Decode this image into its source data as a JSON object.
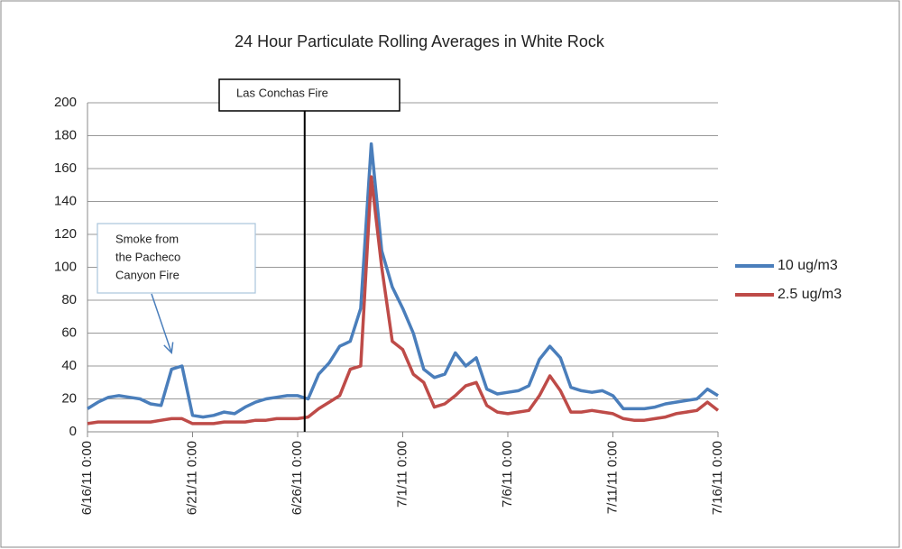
{
  "chart_data": {
    "type": "line",
    "title": "24 Hour Particulate Rolling Averages in White Rock",
    "x": [
      "6/16/11 0:00",
      "6/16/11 12:00",
      "6/17/11 0:00",
      "6/17/11 12:00",
      "6/18/11 0:00",
      "6/18/11 12:00",
      "6/19/11 0:00",
      "6/19/11 12:00",
      "6/20/11 0:00",
      "6/20/11 12:00",
      "6/21/11 0:00",
      "6/21/11 12:00",
      "6/22/11 0:00",
      "6/22/11 12:00",
      "6/23/11 0:00",
      "6/23/11 12:00",
      "6/24/11 0:00",
      "6/24/11 12:00",
      "6/25/11 0:00",
      "6/25/11 12:00",
      "6/26/11 0:00",
      "6/26/11 12:00",
      "6/27/11 0:00",
      "6/27/11 12:00",
      "6/28/11 0:00",
      "6/28/11 12:00",
      "6/29/11 0:00",
      "6/29/11 12:00",
      "6/30/11 0:00",
      "6/30/11 12:00",
      "7/1/11 0:00",
      "7/1/11 12:00",
      "7/2/11 0:00",
      "7/2/11 12:00",
      "7/3/11 0:00",
      "7/3/11 12:00",
      "7/4/11 0:00",
      "7/4/11 12:00",
      "7/5/11 0:00",
      "7/5/11 12:00",
      "7/6/11 0:00",
      "7/6/11 12:00",
      "7/7/11 0:00",
      "7/7/11 12:00",
      "7/8/11 0:00",
      "7/8/11 12:00",
      "7/9/11 0:00",
      "7/9/11 12:00",
      "7/10/11 0:00",
      "7/10/11 12:00",
      "7/11/11 0:00",
      "7/11/11 12:00",
      "7/12/11 0:00",
      "7/12/11 12:00",
      "7/13/11 0:00",
      "7/13/11 12:00",
      "7/14/11 0:00",
      "7/14/11 12:00",
      "7/15/11 0:00",
      "7/15/11 12:00",
      "7/16/11 0:00"
    ],
    "series": [
      {
        "name": "10 ug/m3",
        "color": "#4a7ebb",
        "values": [
          14,
          18,
          21,
          22,
          21,
          20,
          17,
          16,
          38,
          40,
          10,
          9,
          10,
          12,
          11,
          15,
          18,
          20,
          21,
          22,
          22,
          20,
          35,
          42,
          52,
          55,
          75,
          175,
          110,
          88,
          75,
          60,
          38,
          33,
          35,
          48,
          40,
          45,
          26,
          23,
          24,
          25,
          28,
          44,
          52,
          45,
          27,
          25,
          24,
          25,
          22,
          14,
          14,
          14,
          15,
          17,
          18,
          19,
          20,
          26,
          22
        ]
      },
      {
        "name": "2.5 ug/m3",
        "color": "#be4b48",
        "values": [
          5,
          6,
          6,
          6,
          6,
          6,
          6,
          7,
          8,
          8,
          5,
          5,
          5,
          6,
          6,
          6,
          7,
          7,
          8,
          8,
          8,
          9,
          14,
          18,
          22,
          38,
          40,
          155,
          100,
          55,
          50,
          35,
          30,
          15,
          17,
          22,
          28,
          30,
          16,
          12,
          11,
          12,
          13,
          22,
          34,
          25,
          12,
          12,
          13,
          12,
          11,
          8,
          7,
          7,
          8,
          9,
          11,
          12,
          13,
          18,
          13
        ]
      }
    ],
    "xlim": [
      "6/16/11 0:00",
      "7/16/11 0:00"
    ],
    "xticks": [
      "6/16/11 0:00",
      "6/21/11 0:00",
      "6/26/11 0:00",
      "7/1/11 0:00",
      "7/6/11 0:00",
      "7/11/11 0:00",
      "7/16/11 0:00"
    ],
    "ylim": [
      0,
      200
    ],
    "yticks": [
      0,
      20,
      40,
      60,
      80,
      100,
      120,
      140,
      160,
      180,
      200
    ],
    "grid": true,
    "legend": "right",
    "annotations": [
      {
        "text": [
          "Las Conchas Fire"
        ],
        "x": "6/26/11 8:00"
      },
      {
        "text": [
          "Smoke from",
          "the Pacheco",
          "Canyon Fire"
        ],
        "x": "6/20/11 0:00",
        "y": 48
      }
    ]
  }
}
